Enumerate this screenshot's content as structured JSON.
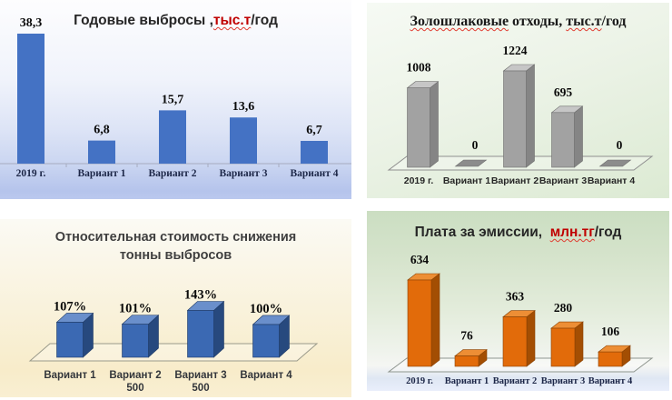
{
  "slide": {
    "background": "#ffffff",
    "accent_red": "#C00000"
  },
  "chart_data": [
    {
      "id": "annual_emissions",
      "type": "bar",
      "style": "flat-2d",
      "position": "top-left",
      "title": {
        "lines": [
          [
            {
              "text": "Годовые выбросы ,",
              "color": "#262626"
            },
            {
              "text": "тыс.т",
              "color": "#C00000",
              "squiggle": true
            },
            {
              "text": "/год",
              "color": "#262626"
            }
          ]
        ]
      },
      "categories": [
        "2019 г.",
        "Вариант 1",
        "Вариант 2",
        "Вариант 3",
        "Вариант 4"
      ],
      "values": [
        38.3,
        6.8,
        15.7,
        13.6,
        6.7
      ],
      "value_labels": [
        "38,3",
        "6,8",
        "15,7",
        "13,6",
        "6,7"
      ],
      "ylim": [
        0,
        38.3
      ],
      "legend": "none",
      "grid": false,
      "colors": {
        "bar": "#4472C4",
        "axis": "#a6abbf",
        "value_text": "#0a0a0a",
        "category_text": "#1c2647"
      }
    },
    {
      "id": "ash_slag",
      "type": "bar",
      "style": "3d",
      "position": "top-right",
      "title": {
        "lines": [
          [
            {
              "text": "Золошлаковые",
              "color": "#1a1a1a",
              "squiggle": true
            },
            {
              "text": " отходы, ",
              "color": "#1a1a1a"
            },
            {
              "text": "тыс.т",
              "color": "#1a1a1a",
              "squiggle": true
            },
            {
              "text": "/год",
              "color": "#1a1a1a"
            }
          ]
        ]
      },
      "categories": [
        "2019 г.",
        "Вариант 1",
        "Вариант 2",
        "Вариант 3",
        "Вариант 4"
      ],
      "values": [
        1008,
        0,
        1224,
        695,
        0
      ],
      "value_labels": [
        "1008",
        "0",
        "1224",
        "695",
        "0"
      ],
      "ylim": [
        0,
        1224
      ],
      "legend": "none",
      "grid": false,
      "colors": {
        "front": "#A2A2A2",
        "side": "#858585",
        "top": "#C6C6C6",
        "edge": "#6e6e6e",
        "zero_pad": "#8C8C8C",
        "floor_stroke": "#8f8f8f",
        "value_text": "#0a0a0a",
        "category_text": "#262626"
      }
    },
    {
      "id": "relative_cost",
      "type": "bar",
      "style": "3d",
      "position": "bottom-left",
      "title": {
        "lines": [
          [
            {
              "text": "Относительная стоимость снижения",
              "color": "#3f3f3f"
            }
          ],
          [
            {
              "text": "тонны выбросов",
              "color": "#3f3f3f"
            }
          ]
        ]
      },
      "categories": [
        "Вариант 1",
        "Вариант 2",
        "Вариант 3",
        "Вариант 4"
      ],
      "category_sublabels": [
        "",
        "500",
        "500",
        ""
      ],
      "values": [
        107,
        101,
        143,
        100
      ],
      "value_labels": [
        "107%",
        "101%",
        "143%",
        "100%"
      ],
      "ylim": [
        0,
        143
      ],
      "legend": "none",
      "grid": false,
      "colors": {
        "front": "#3B69B3",
        "side": "#27497E",
        "top": "#6A8FCB",
        "edge": "#1f3a66",
        "floor_stroke": "#9a9a8a",
        "value_text": "#0a0a0a",
        "category_text": "#33363b"
      }
    },
    {
      "id": "emission_fees",
      "type": "bar",
      "style": "3d",
      "position": "bottom-right",
      "title": {
        "lines": [
          [
            {
              "text": "Плата за эмиссии,  ",
              "color": "#262626"
            },
            {
              "text": "млн.тг",
              "color": "#C00000",
              "squiggle": true
            },
            {
              "text": "/год",
              "color": "#262626"
            }
          ]
        ]
      },
      "categories": [
        "2019 г.",
        "Вариант 1",
        "Вариант 2",
        "Вариант 3",
        "Вариант 4"
      ],
      "values": [
        634,
        76,
        363,
        280,
        106
      ],
      "value_labels": [
        "634",
        "76",
        "363",
        "280",
        "106"
      ],
      "ylim": [
        0,
        634
      ],
      "legend": "none",
      "grid": false,
      "colors": {
        "front": "#E26B0A",
        "side": "#A34E03",
        "top": "#ED8E35",
        "edge": "#8a4203",
        "floor_stroke": "#8f968f",
        "value_text": "#0a0a0a",
        "category_text": "#1c2647"
      }
    }
  ]
}
